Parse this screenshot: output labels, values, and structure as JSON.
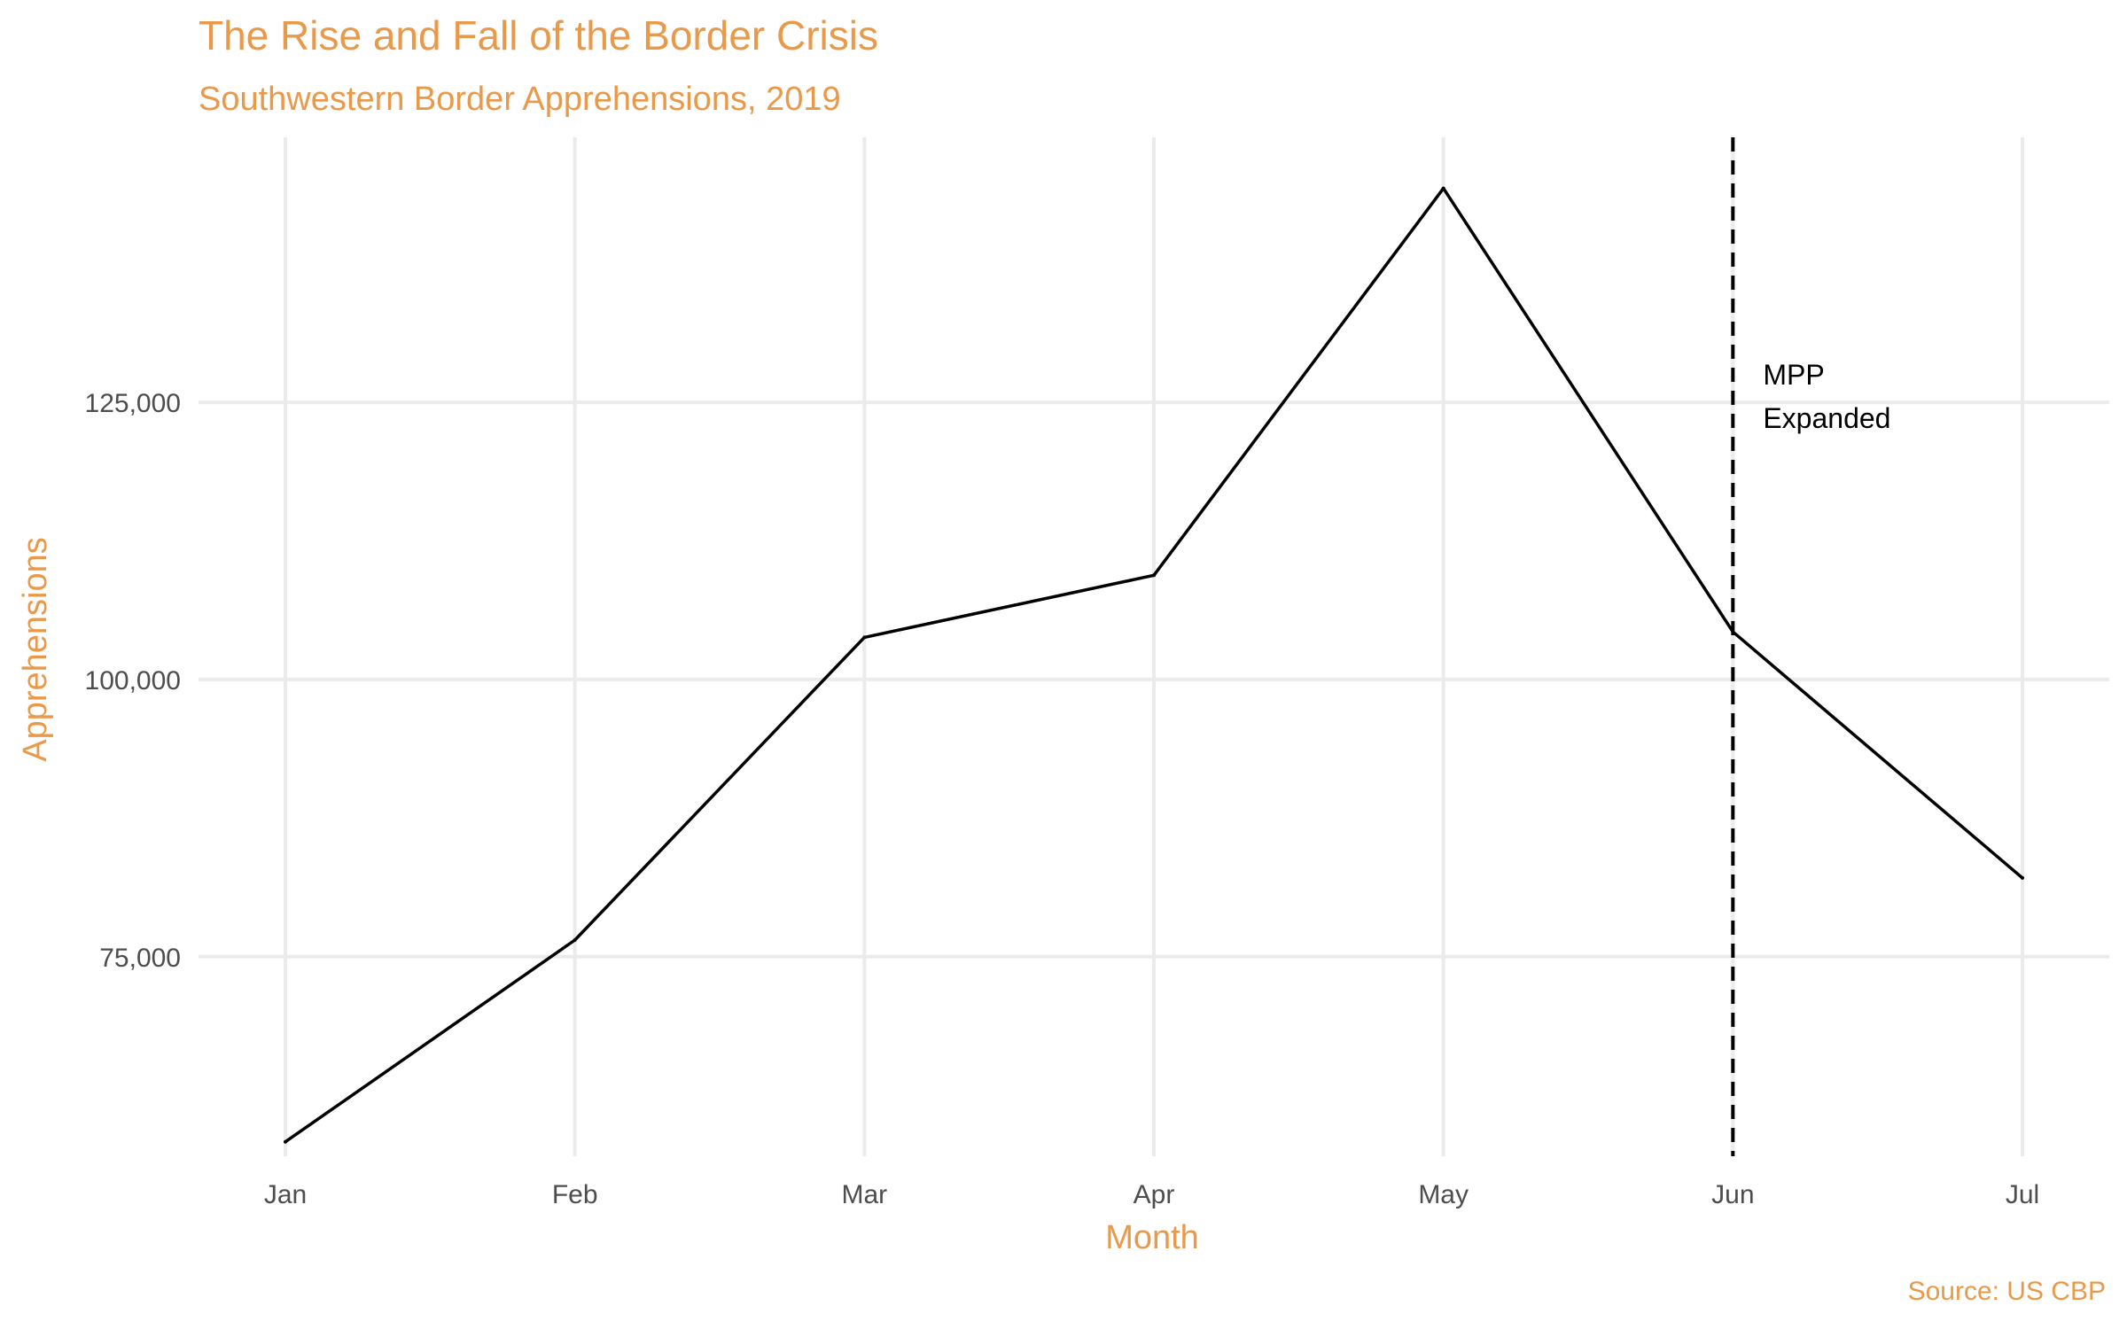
{
  "chart_data": {
    "type": "line",
    "title": "The Rise and Fall of the Border Crisis",
    "subtitle": "Southwestern Border Apprehensions, 2019",
    "xlabel": "Month",
    "ylabel": "Apprehensions",
    "caption": "Source: US CBP",
    "categories": [
      "Jan",
      "Feb",
      "Mar",
      "Apr",
      "May",
      "Jun",
      "Jul"
    ],
    "values": [
      58300,
      76500,
      103800,
      109400,
      144300,
      104300,
      82100
    ],
    "ylim": [
      57000,
      148900
    ],
    "yticks": [
      75000,
      100000,
      125000
    ],
    "ytick_labels": [
      "75,000",
      "100,000",
      "125,000"
    ],
    "grid": true,
    "annotation": {
      "x_category": "Jun",
      "lines": [
        "MPP",
        "Expanded"
      ],
      "line_style": "dashed"
    },
    "colors": {
      "title": "#E9994A",
      "line": "#000000",
      "grid": "#EBEBEB",
      "tick_text": "#4D4D4D"
    }
  }
}
